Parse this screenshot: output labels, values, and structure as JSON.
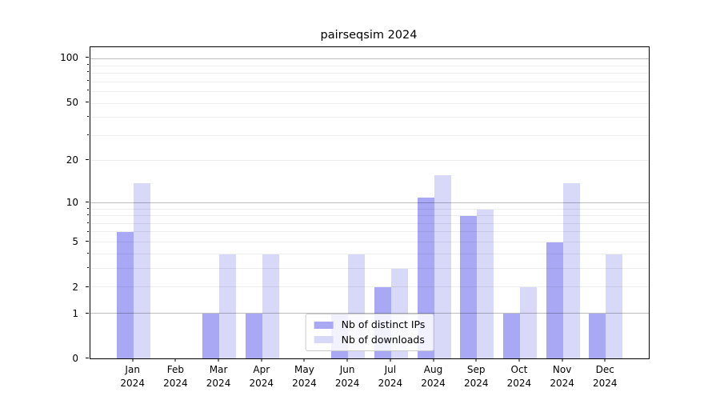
{
  "figure": {
    "title": "pairseqsim 2024",
    "background_color": "#ffffff",
    "spine_color": "#000000"
  },
  "chart_data": {
    "type": "bar",
    "title": "pairseqsim 2024",
    "categories": [
      "Jan 2024",
      "Feb 2024",
      "Mar 2024",
      "Apr 2024",
      "May 2024",
      "Jun 2024",
      "Jul 2024",
      "Aug 2024",
      "Sep 2024",
      "Oct 2024",
      "Nov 2024",
      "Dec 2024"
    ],
    "series": [
      {
        "name": "Nb of distinct IPs",
        "color": "#a8a8f5",
        "values": [
          6,
          0,
          1,
          1,
          0,
          1,
          2,
          11,
          8,
          1,
          5,
          1
        ]
      },
      {
        "name": "Nb of downloads",
        "color": "#d8d8f8",
        "values": [
          14,
          0,
          4,
          4,
          0,
          4,
          3,
          16,
          9,
          2,
          14,
          4
        ]
      }
    ],
    "yscale": "log1p",
    "ylim": [
      0,
      121
    ],
    "yticks": [
      0,
      1,
      2,
      5,
      10,
      20,
      50,
      100
    ],
    "minor_yticks": [
      3,
      4,
      6,
      7,
      8,
      9,
      30,
      40,
      60,
      70,
      80,
      90
    ],
    "major_gridlines": [
      1,
      10,
      100
    ],
    "minor_gridlines": [
      2,
      3,
      4,
      5,
      6,
      7,
      8,
      9,
      20,
      30,
      40,
      50,
      60,
      70,
      80,
      90
    ],
    "grid": true,
    "xlabel": "",
    "ylabel": "",
    "legend_position": "lower center"
  }
}
